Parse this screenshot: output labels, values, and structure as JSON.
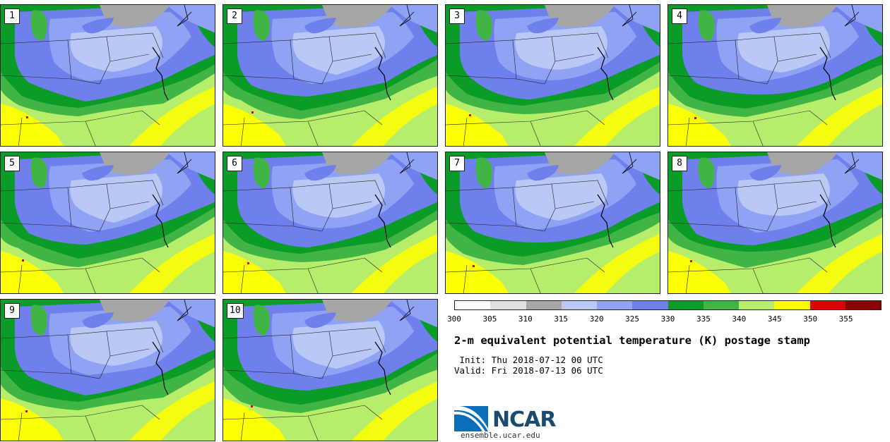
{
  "panels": [
    {
      "label": "1"
    },
    {
      "label": "2"
    },
    {
      "label": "3"
    },
    {
      "label": "4"
    },
    {
      "label": "5"
    },
    {
      "label": "6"
    },
    {
      "label": "7"
    },
    {
      "label": "8"
    },
    {
      "label": "9"
    },
    {
      "label": "10"
    }
  ],
  "colorbar": {
    "ticks": [
      "300",
      "305",
      "310",
      "315",
      "320",
      "325",
      "330",
      "335",
      "340",
      "345",
      "350",
      "355"
    ],
    "colors": [
      "#ffffff",
      "#e0e0e0",
      "#a6a6a6",
      "#b9c8f5",
      "#8fa2f3",
      "#6f80ec",
      "#0b9b28",
      "#40b546",
      "#b6ee6c",
      "#ffff00",
      "#dd0000",
      "#880000"
    ]
  },
  "title": "2-m equivalent potential temperature (K) postage stamp",
  "init": " Init: Thu 2018-07-12 00 UTC",
  "valid": "Valid: Fri 2018-07-13 06 UTC",
  "logo": {
    "text": "NCAR",
    "url": "ensemble.ucar.edu"
  },
  "map_colors": {
    "light_green": "#b6ee6c",
    "yellow": "#ffff00",
    "green_mid": "#40b546",
    "green_dark": "#0b9b28",
    "blue_dark": "#6f80ec",
    "blue_mid": "#8fa2f3",
    "blue_light": "#b9c8f5",
    "gray": "#a6a6a6",
    "red": "#dd0000"
  }
}
